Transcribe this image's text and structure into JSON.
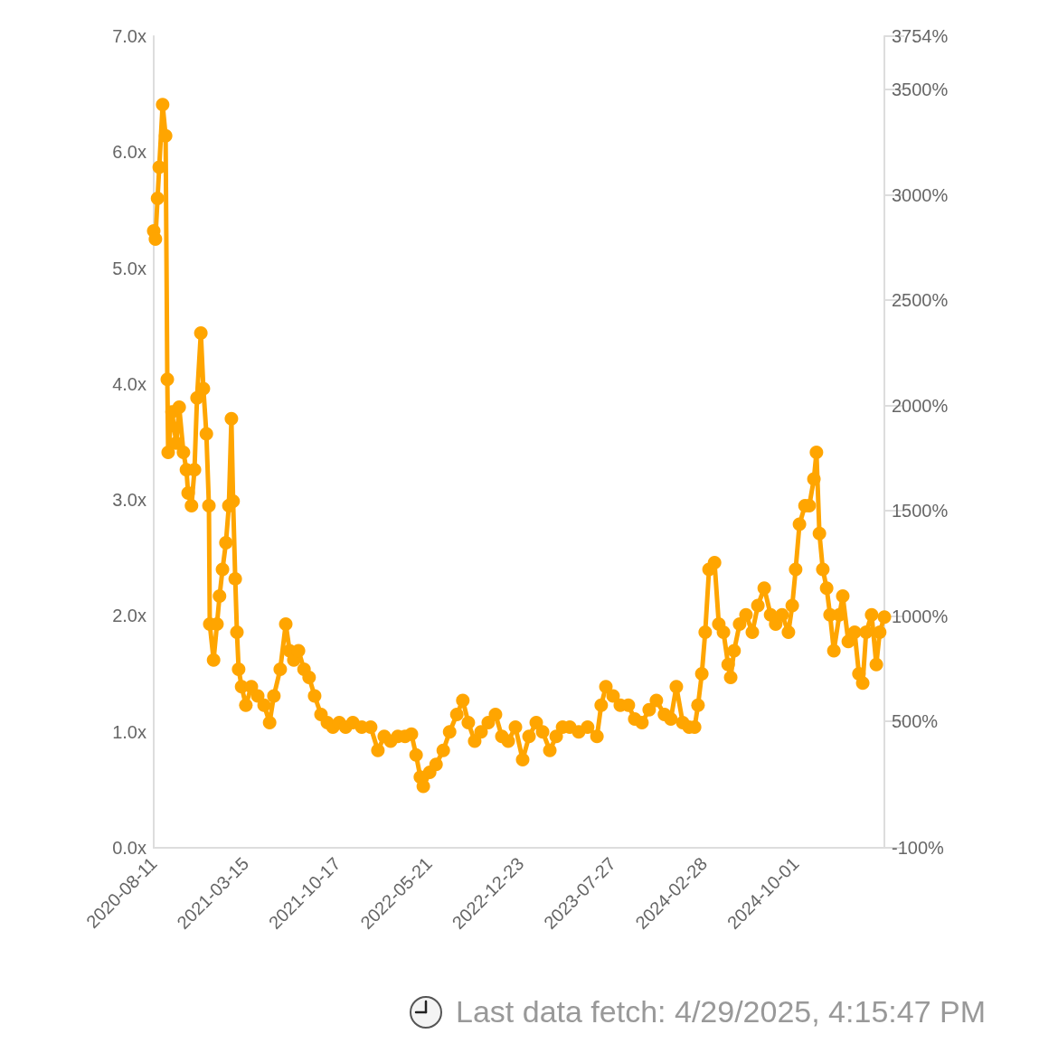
{
  "chart_data": {
    "type": "line",
    "marker": "circle",
    "line_style": "solid",
    "grid": false,
    "x": [
      "2020-08-11",
      "2020-08-15",
      "2020-08-20",
      "2020-08-24",
      "2020-09-01",
      "2020-09-08",
      "2020-09-12",
      "2020-09-14",
      "2020-09-23",
      "2020-10-03",
      "2020-10-10",
      "2020-10-20",
      "2020-10-27",
      "2020-10-31",
      "2020-11-08",
      "2020-11-15",
      "2020-11-21",
      "2020-11-30",
      "2020-12-06",
      "2020-12-13",
      "2020-12-19",
      "2020-12-21",
      "2020-12-30",
      "2021-01-07",
      "2021-01-13",
      "2021-01-20",
      "2021-01-28",
      "2021-02-04",
      "2021-02-10",
      "2021-02-14",
      "2021-02-19",
      "2021-02-23",
      "2021-02-27",
      "2021-03-06",
      "2021-03-16",
      "2021-03-29",
      "2021-04-13",
      "2021-04-28",
      "2021-05-11",
      "2021-05-21",
      "2021-06-05",
      "2021-06-18",
      "2021-06-27",
      "2021-07-07",
      "2021-07-18",
      "2021-07-31",
      "2021-08-12",
      "2021-08-25",
      "2021-09-09",
      "2021-09-24",
      "2021-10-07",
      "2021-10-22",
      "2021-11-06",
      "2021-11-23",
      "2021-12-14",
      "2022-01-04",
      "2022-01-21",
      "2022-02-05",
      "2022-02-20",
      "2022-03-09",
      "2022-03-26",
      "2022-04-10",
      "2022-04-21",
      "2022-05-01",
      "2022-05-08",
      "2022-05-23",
      "2022-06-07",
      "2022-06-24",
      "2022-07-09",
      "2022-07-26",
      "2022-08-09",
      "2022-08-22",
      "2022-09-06",
      "2022-09-21",
      "2022-10-08",
      "2022-10-25",
      "2022-11-09",
      "2022-11-24",
      "2022-12-11",
      "2022-12-28",
      "2023-01-12",
      "2023-01-29",
      "2023-02-13",
      "2023-03-02",
      "2023-03-17",
      "2023-04-01",
      "2023-04-18",
      "2023-05-09",
      "2023-05-30",
      "2023-06-21",
      "2023-07-01",
      "2023-07-12",
      "2023-07-29",
      "2023-08-15",
      "2023-09-03",
      "2023-09-18",
      "2023-10-05",
      "2023-10-22",
      "2023-11-08",
      "2023-11-27",
      "2023-12-12",
      "2023-12-25",
      "2024-01-09",
      "2024-01-24",
      "2024-02-06",
      "2024-02-14",
      "2024-02-23",
      "2024-03-02",
      "2024-03-11",
      "2024-03-24",
      "2024-04-03",
      "2024-04-14",
      "2024-04-25",
      "2024-05-01",
      "2024-05-09",
      "2024-05-22",
      "2024-06-06",
      "2024-06-21",
      "2024-07-04",
      "2024-07-19",
      "2024-08-03",
      "2024-08-15",
      "2024-08-30",
      "2024-09-14",
      "2024-09-23",
      "2024-10-01",
      "2024-10-10",
      "2024-10-23",
      "2024-11-02",
      "2024-11-13",
      "2024-11-19",
      "2024-11-26",
      "2024-12-04",
      "2024-12-13",
      "2024-12-21",
      "2024-12-30",
      "2025-01-12",
      "2025-01-20",
      "2025-02-02",
      "2025-02-17",
      "2025-02-27",
      "2025-03-08",
      "2025-03-16",
      "2025-03-29",
      "2025-04-09",
      "2025-04-17",
      "2025-04-28"
    ],
    "series": [
      {
        "color": "#ffa500",
        "values": [
          5.32,
          5.25,
          5.6,
          5.87,
          6.41,
          6.14,
          4.04,
          3.41,
          3.76,
          3.49,
          3.8,
          3.41,
          3.26,
          3.06,
          2.95,
          3.26,
          3.88,
          4.44,
          3.96,
          3.57,
          2.95,
          1.93,
          1.62,
          1.93,
          2.17,
          2.4,
          2.63,
          2.95,
          3.7,
          2.99,
          2.32,
          1.86,
          1.54,
          1.39,
          1.23,
          1.39,
          1.31,
          1.23,
          1.08,
          1.31,
          1.54,
          1.93,
          1.7,
          1.62,
          1.7,
          1.54,
          1.47,
          1.31,
          1.15,
          1.08,
          1.04,
          1.08,
          1.04,
          1.08,
          1.04,
          1.04,
          0.84,
          0.96,
          0.92,
          0.96,
          0.96,
          0.98,
          0.8,
          0.61,
          0.53,
          0.65,
          0.72,
          0.84,
          1.0,
          1.15,
          1.27,
          1.08,
          0.92,
          1.0,
          1.08,
          1.15,
          0.96,
          0.92,
          1.04,
          0.76,
          0.96,
          1.08,
          1.0,
          0.84,
          0.96,
          1.04,
          1.04,
          1.0,
          1.04,
          0.96,
          1.23,
          1.39,
          1.31,
          1.23,
          1.23,
          1.11,
          1.08,
          1.19,
          1.27,
          1.15,
          1.11,
          1.39,
          1.08,
          1.04,
          1.04,
          1.23,
          1.5,
          1.86,
          2.4,
          2.46,
          1.93,
          1.86,
          1.58,
          1.47,
          1.7,
          1.93,
          2.01,
          1.86,
          2.09,
          2.24,
          2.01,
          1.93,
          2.01,
          1.86,
          2.09,
          2.4,
          2.79,
          2.95,
          2.95,
          3.18,
          3.41,
          2.71,
          2.4,
          2.24,
          2.01,
          1.7,
          2.01,
          2.17,
          1.78,
          1.86,
          1.5,
          1.42,
          1.86,
          2.01,
          1.58,
          1.86,
          1.99
        ]
      }
    ],
    "xlim": [
      "2020-08-11",
      "2025-04-28"
    ],
    "xticks": [
      "2020-08-11",
      "2021-03-15",
      "2021-10-17",
      "2022-05-21",
      "2022-12-23",
      "2023-07-27",
      "2024-02-28",
      "2024-10-01"
    ],
    "ylim": [
      0,
      7
    ],
    "yticks": [
      {
        "value": 0,
        "label": "0.0x"
      },
      {
        "value": 1,
        "label": "1.0x"
      },
      {
        "value": 2,
        "label": "2.0x"
      },
      {
        "value": 3,
        "label": "3.0x"
      },
      {
        "value": 4,
        "label": "4.0x"
      },
      {
        "value": 5,
        "label": "5.0x"
      },
      {
        "value": 6,
        "label": "6.0x"
      },
      {
        "value": 7,
        "label": "7.0x"
      }
    ],
    "y2lim": [
      -100,
      3754
    ],
    "y2ticks": [
      {
        "value": -100,
        "label": "-100%"
      },
      {
        "value": 500,
        "label": "500%"
      },
      {
        "value": 1000,
        "label": "1000%"
      },
      {
        "value": 1500,
        "label": "1500%"
      },
      {
        "value": 2000,
        "label": "2000%"
      },
      {
        "value": 2500,
        "label": "2500%"
      },
      {
        "value": 3000,
        "label": "3000%"
      },
      {
        "value": 3500,
        "label": "3500%"
      },
      {
        "value": 3754,
        "label": "3754%"
      }
    ],
    "annotations": [
      "Last data fetch: 4/29/2025, 4:15:47 PM"
    ]
  }
}
